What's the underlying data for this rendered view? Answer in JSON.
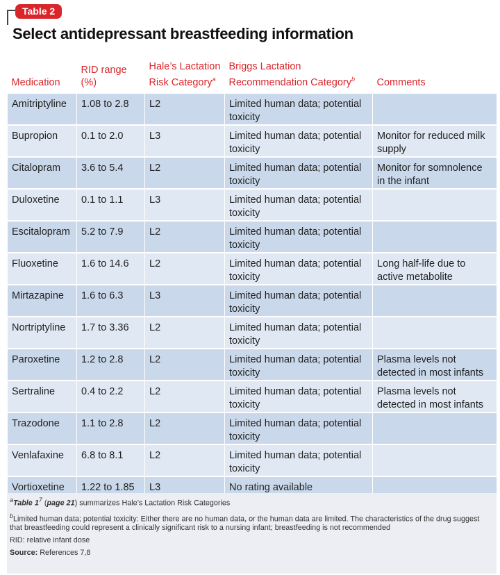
{
  "label": "Table 2",
  "title": "Select antidepressant breastfeeding information",
  "table": {
    "header": [
      {
        "text": "Medication"
      },
      {
        "text": "RID range (%)"
      },
      {
        "text": "Hale’s Lactation Risk Category",
        "sup": "a"
      },
      {
        "text": "Briggs Lactation Recommendation Category",
        "sup": "b"
      },
      {
        "text": "Comments"
      }
    ],
    "rows": [
      [
        "Amitriptyline",
        "1.08 to 2.8",
        "L2",
        "Limited human data; potential toxicity",
        null
      ],
      [
        "Bupropion",
        "0.1 to 2.0",
        "L3",
        "Limited human data; potential toxicity",
        "Monitor for reduced milk supply"
      ],
      [
        "Citalopram",
        "3.6 to 5.4",
        "L2",
        "Limited human data; potential toxicity",
        "Monitor for somnolence in the infant"
      ],
      [
        "Duloxetine",
        "0.1 to 1.1",
        "L3",
        "Limited human data; potential toxicity",
        null
      ],
      [
        "Escitalopram",
        "5.2 to 7.9",
        "L2",
        "Limited human data; potential toxicity",
        null
      ],
      [
        "Fluoxetine",
        "1.6 to 14.6",
        "L2",
        "Limited human data; potential toxicity",
        "Long half-life due to active metabolite"
      ],
      [
        "Mirtazapine",
        "1.6 to 6.3",
        "L3",
        "Limited human data; potential toxicity",
        null
      ],
      [
        "Nortriptyline",
        "1.7 to 3.36",
        "L2",
        "Limited human data; potential toxicity",
        null
      ],
      [
        "Paroxetine",
        "1.2 to 2.8",
        "L2",
        "Limited human data; potential toxicity",
        "Plasma levels not detected in most infants"
      ],
      [
        "Sertraline",
        "0.4 to 2.2",
        "L2",
        "Limited human data; potential toxicity",
        "Plasma levels not detected in most infants"
      ],
      [
        "Trazodone",
        "1.1 to 2.8",
        "L2",
        "Limited human data; potential toxicity",
        null
      ],
      [
        "Venlafaxine",
        "6.8 to 8.1",
        "L2",
        "Limited human data; potential toxicity",
        null
      ],
      [
        "Vortioxetine",
        "1.22 to 1.85",
        "L3",
        "No rating available",
        null
      ]
    ]
  },
  "footnotes": [
    {
      "parts": [
        {
          "text": "a",
          "style": "sup"
        },
        {
          "text": "Table 1",
          "style": "bi"
        },
        {
          "text": "7",
          "style": "sup"
        },
        {
          "text": " ("
        },
        {
          "text": "page 21",
          "style": "bi"
        },
        {
          "text": ") summarizes Hale’s Lactation Risk Categories"
        }
      ]
    },
    {
      "parts": [
        {
          "text": "b",
          "style": "sup"
        },
        {
          "text": "Limited human data; potential toxicity: Either there are no human data, or the human data are limited. The characteristics of the drug suggest that breastfeeding could represent a clinically significant risk to a nursing infant; breastfeeding is not recommended"
        }
      ]
    },
    {
      "parts": [
        {
          "text": "RID: relative infant dose"
        }
      ]
    },
    {
      "parts": [
        {
          "text": "Source:",
          "style": "b"
        },
        {
          "text": " References 7,8"
        }
      ]
    }
  ]
}
